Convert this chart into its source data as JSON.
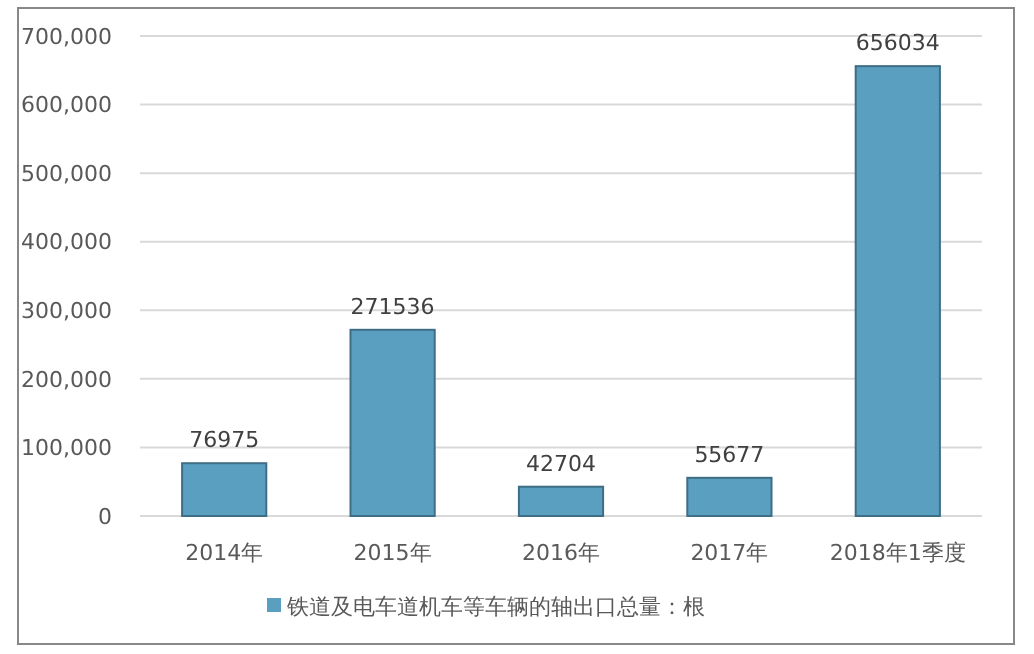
{
  "chart_data": {
    "type": "bar",
    "categories": [
      "2014年",
      "2015年",
      "2016年",
      "2017年",
      "2018年1季度"
    ],
    "series": [
      {
        "name": "铁道及电车道机车等车辆的轴出口总量：根",
        "color": "#5a9ec0",
        "values": [
          76975,
          271536,
          42704,
          55677,
          656034
        ]
      }
    ],
    "ylim": [
      0,
      700000
    ],
    "yticks": [
      0,
      {
        "value": 100000,
        "label": "100,000"
      },
      {
        "value": 200000,
        "label": "200,000"
      },
      {
        "value": 300000,
        "label": "300,000"
      },
      {
        "value": 400000,
        "label": "400,000"
      },
      {
        "value": 500000,
        "label": "500,000"
      },
      {
        "value": 600000,
        "label": "600,000"
      },
      {
        "value": 700000,
        "label": "700,000"
      }
    ],
    "grid": "y",
    "data_labels": true,
    "legend": "bottom"
  }
}
